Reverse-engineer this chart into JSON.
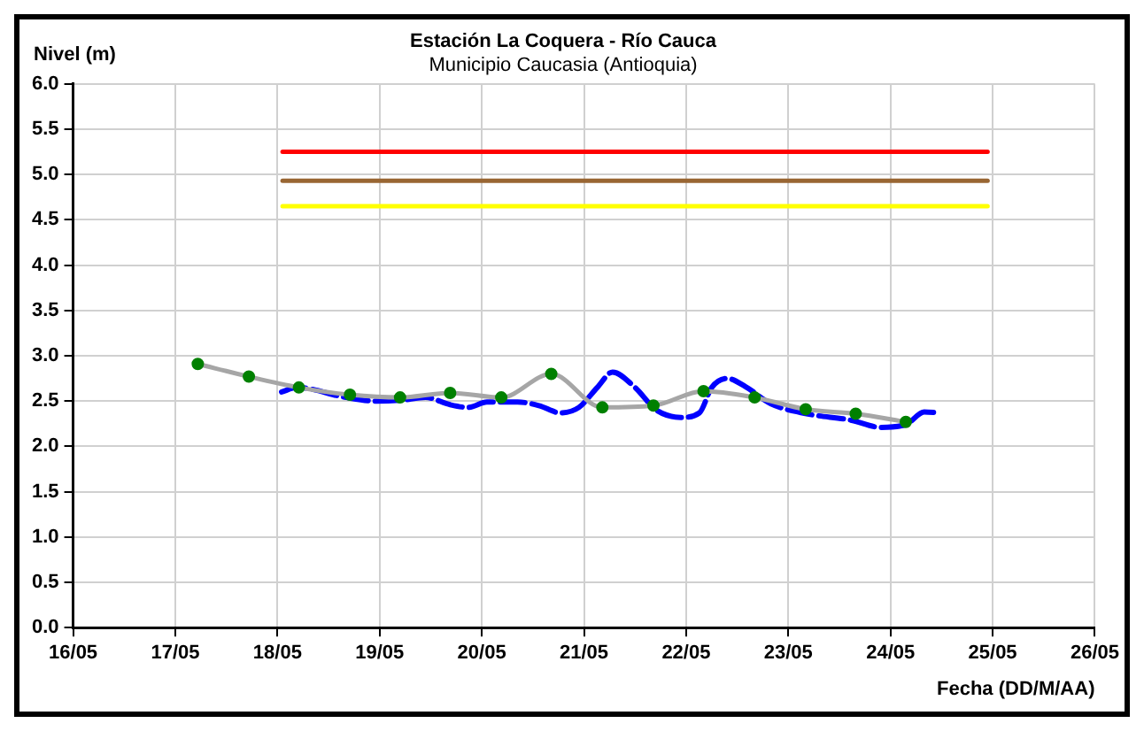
{
  "chart_data": {
    "type": "line",
    "title": "Estación La Coquera - Río Cauca",
    "subtitle": "Municipio Caucasia (Antioquia)",
    "xlabel": "Fecha (DD/M/AA)",
    "ylabel": "Nivel (m)",
    "xlim": [
      "--05-16",
      "--05-26"
    ],
    "xticks": [
      {
        "value": "--05-16",
        "label": "16/05"
      },
      {
        "value": "--05-17",
        "label": "17/05"
      },
      {
        "value": "--05-18",
        "label": "18/05"
      },
      {
        "value": "--05-19",
        "label": "19/05"
      },
      {
        "value": "--05-20",
        "label": "20/05"
      },
      {
        "value": "--05-21",
        "label": "21/05"
      },
      {
        "value": "--05-22",
        "label": "22/05"
      },
      {
        "value": "--05-23",
        "label": "23/05"
      },
      {
        "value": "--05-24",
        "label": "24/05"
      },
      {
        "value": "--05-25",
        "label": "25/05"
      },
      {
        "value": "--05-26",
        "label": "26/05"
      }
    ],
    "ylim": [
      0,
      6
    ],
    "yticks": [
      {
        "value": 0,
        "label": "0.0"
      },
      {
        "value": 0.5,
        "label": "0.5"
      },
      {
        "value": 1,
        "label": "1.0"
      },
      {
        "value": 1.5,
        "label": "1.5"
      },
      {
        "value": 2,
        "label": "2.0"
      },
      {
        "value": 2.5,
        "label": "2.5"
      },
      {
        "value": 3,
        "label": "3.0"
      },
      {
        "value": 3.5,
        "label": "3.5"
      },
      {
        "value": 4,
        "label": "4.0"
      },
      {
        "value": 4.5,
        "label": "4.5"
      },
      {
        "value": 5,
        "label": "5.0"
      },
      {
        "value": 5.5,
        "label": "5.5"
      },
      {
        "value": 6,
        "label": "6.0"
      }
    ],
    "grid": true,
    "legend": false,
    "series": [
      {
        "type": "line",
        "color": "#ff0000",
        "marker": "none",
        "x": [
          "--05-18T01:12",
          "--05-24T22:48"
        ],
        "values": [
          5.25,
          5.25
        ]
      },
      {
        "type": "line",
        "color": "#996633",
        "marker": "none",
        "x": [
          "--05-18T01:12",
          "--05-24T22:48"
        ],
        "values": [
          4.93,
          4.93
        ]
      },
      {
        "type": "line",
        "color": "#ffff00",
        "marker": "none",
        "x": [
          "--05-18T01:12",
          "--05-24T22:48"
        ],
        "values": [
          4.65,
          4.65
        ]
      },
      {
        "type": "line",
        "color": "#0000ff",
        "marker": "none",
        "line_style": "dashed",
        "x": [
          "--05-18T00:58",
          "--05-18T04:34",
          "--05-18T16:05",
          "--05-18T23:17",
          "--05-19T05:02",
          "--05-19T10:48",
          "--05-19T16:34",
          "--05-19T20:53",
          "--05-20T01:12",
          "--05-20T08:24",
          "--05-20T13:26",
          "--05-20T18:29",
          "--05-20T22:48",
          "--05-21T03:07",
          "--05-21T06:43",
          "--05-21T12:00",
          "--05-21T17:02",
          "--05-21T22:48",
          "--05-22T03:07",
          "--05-22T06:00",
          "--05-22T09:36",
          "--05-22T13:55",
          "--05-22T19:55",
          "--05-23T04:19",
          "--05-23T14:38",
          "--05-23T21:50",
          "--05-24T03:36",
          "--05-24T07:55",
          "--05-24T11:31"
        ],
        "values": [
          2.6,
          2.65,
          2.54,
          2.5,
          2.51,
          2.54,
          2.46,
          2.43,
          2.49,
          2.49,
          2.45,
          2.37,
          2.43,
          2.65,
          2.82,
          2.65,
          2.4,
          2.32,
          2.37,
          2.65,
          2.75,
          2.66,
          2.47,
          2.36,
          2.29,
          2.21,
          2.24,
          2.38,
          2.37
        ]
      },
      {
        "type": "line",
        "color": "#a6a6a6",
        "marker": "none",
        "x": [
          "--05-17T05:17",
          "--05-17T17:17",
          "--05-18T05:02",
          "--05-18T17:02",
          "--05-19T04:48",
          "--05-19T16:34",
          "--05-20T04:34",
          "--05-20T16:19",
          "--05-21T04:19",
          "--05-21T16:19",
          "--05-22T04:05",
          "--05-22T16:05",
          "--05-23T04:05",
          "--05-23T15:50",
          "--05-24T03:36"
        ],
        "values": [
          2.91,
          2.77,
          2.65,
          2.57,
          2.54,
          2.59,
          2.54,
          2.8,
          2.43,
          2.45,
          2.61,
          2.54,
          2.41,
          2.36,
          2.27
        ]
      },
      {
        "type": "scatter",
        "color": "#008000",
        "marker": "circle",
        "x": [
          "--05-17T05:17",
          "--05-17T17:17",
          "--05-18T05:02",
          "--05-18T17:02",
          "--05-19T04:48",
          "--05-19T16:34",
          "--05-20T04:34",
          "--05-20T16:19",
          "--05-21T04:19",
          "--05-21T16:19",
          "--05-22T04:05",
          "--05-22T16:05",
          "--05-23T04:05",
          "--05-23T15:50",
          "--05-24T03:36"
        ],
        "values": [
          2.91,
          2.77,
          2.65,
          2.57,
          2.54,
          2.59,
          2.54,
          2.8,
          2.43,
          2.45,
          2.61,
          2.54,
          2.41,
          2.36,
          2.27
        ]
      }
    ]
  }
}
